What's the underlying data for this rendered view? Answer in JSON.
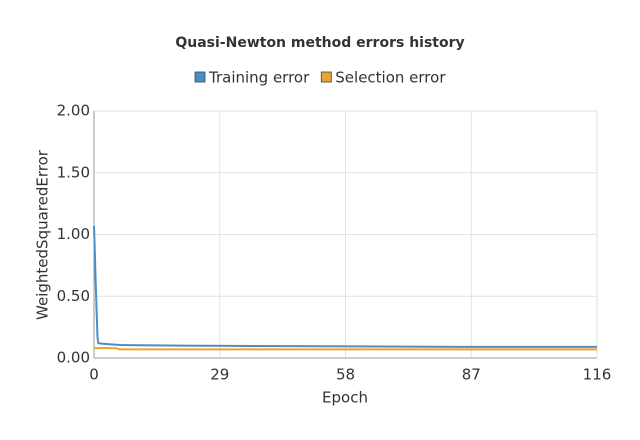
{
  "chart_data": {
    "type": "line",
    "title": "Quasi-Newton method errors history",
    "x_label": "Epoch",
    "y_label": "WeightedSquaredError",
    "series": [
      {
        "name": "Training error",
        "color": "#4a8fc4",
        "x": [
          0,
          0.2,
          0.4,
          0.6,
          0.8,
          1,
          2,
          6,
          20,
          84,
          116
        ],
        "values": [
          1.07,
          0.85,
          0.6,
          0.38,
          0.17,
          0.12,
          0.115,
          0.105,
          0.1,
          0.09,
          0.09
        ]
      },
      {
        "name": "Selection error",
        "color": "#f0a030",
        "x": [
          0,
          5,
          6,
          116
        ],
        "values": [
          0.08,
          0.08,
          0.07,
          0.07
        ]
      }
    ],
    "xlim": [
      0,
      116
    ],
    "xticks": [
      0,
      29,
      58,
      87,
      116
    ],
    "ylim": [
      0,
      2
    ],
    "yticks": [
      {
        "value": 0,
        "label": "0.00"
      },
      {
        "value": 0.5,
        "label": "0.50"
      },
      {
        "value": 1,
        "label": "1.00"
      },
      {
        "value": 1.5,
        "label": "1.50"
      },
      {
        "value": 2,
        "label": "2.00"
      }
    ],
    "grid": true,
    "legend": "top"
  }
}
